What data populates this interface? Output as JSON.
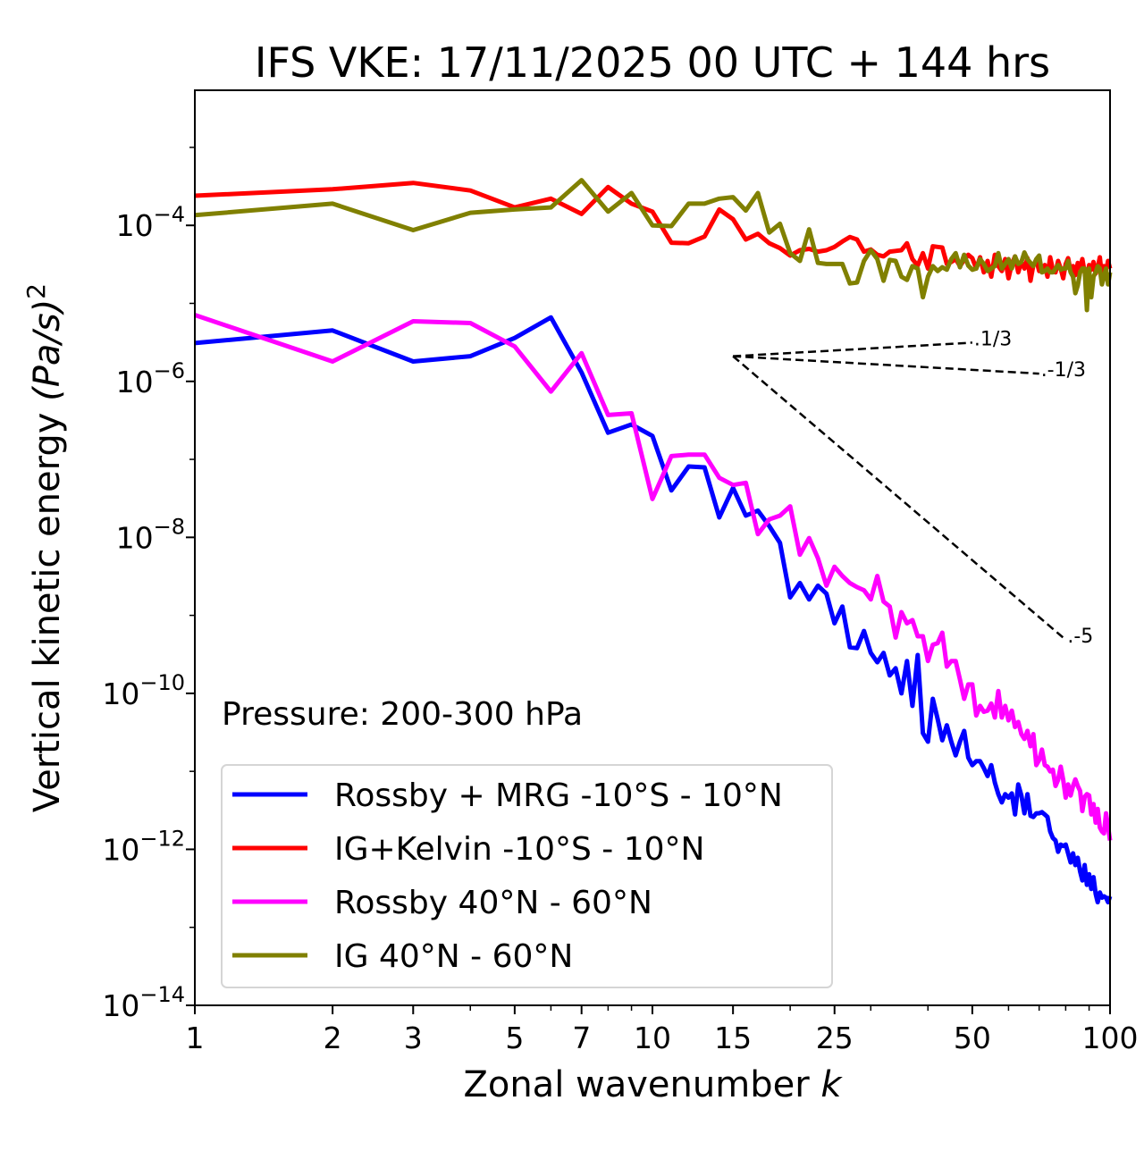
{
  "chart_data": {
    "type": "line",
    "title": "IFS VKE: 17/11/2025 00 UTC + 144 hrs",
    "xlabel": {
      "text": "Zonal wavenumber ",
      "var": "k"
    },
    "ylabel": {
      "text": "Vertical kinetic energy ",
      "unit": "(Pa/s)",
      "exp": "2"
    },
    "xscale": "log",
    "yscale": "log",
    "xlim": [
      1,
      100
    ],
    "ylim": [
      1e-14,
      0.0054
    ],
    "xticks": [
      1,
      2,
      3,
      5,
      7,
      10,
      15,
      25,
      50,
      100
    ],
    "xtick_labels": [
      "1",
      "2",
      "3",
      "5",
      "7",
      "10",
      "15",
      "25",
      "50",
      "100"
    ],
    "xminor_ticks": [
      4,
      6,
      8,
      9,
      20,
      30,
      40,
      60,
      70,
      80,
      90
    ],
    "yticks": [
      -4,
      -6,
      -8,
      -10,
      -12,
      -14
    ],
    "ytick_labels": [
      {
        "base": "10",
        "exp": "−4"
      },
      {
        "base": "10",
        "exp": "−6"
      },
      {
        "base": "10",
        "exp": "−8"
      },
      {
        "base": "10",
        "exp": "−10"
      },
      {
        "base": "10",
        "exp": "−12"
      },
      {
        "base": "10",
        "exp": "−14"
      }
    ],
    "yminor_ticks": [
      -3,
      -5,
      -7,
      -9,
      -11,
      -13
    ],
    "annotation": "Pressure: 200-300 hPa",
    "legend_position": "lower-left",
    "x_start": 1,
    "series": [
      {
        "name": "Rossby + MRG -10°S - 10°N",
        "color": "#0000ff",
        "values": [
          3.1e-06,
          4.5e-06,
          1.8e-06,
          2.1e-06,
          3.6e-06,
          6.6e-06,
          1.3e-06,
          2.2e-07,
          2.8e-07,
          2e-07,
          4e-08,
          8.1e-08,
          7.9e-08,
          1.8e-08,
          4.3e-08,
          1.9e-08,
          2.2e-08,
          1.4e-08,
          8.5e-09,
          1.7e-09,
          2.6e-09,
          1.6e-09,
          2.4e-09,
          1.9e-09,
          7.9e-10,
          1.3e-09,
          3.9e-10,
          3.8e-10,
          6.3e-10,
          3.3e-10,
          2.5e-10,
          3.3e-10,
          1.7e-10,
          2.1e-10,
          1e-10,
          2.6e-10,
          6.9e-11,
          3.1e-10,
          3.1e-11,
          2.4e-11,
          8.5e-11,
          4.7e-11,
          2.5e-11,
          3.9e-11,
          2.4e-11,
          1.6e-11,
          2.4e-11,
          3.3e-11,
          1.5e-11,
          1.2e-11,
          1.35e-11,
          1.35e-11,
          1.1e-11,
          8.7e-12,
          1.2e-11,
          7.2e-12,
          5.1e-12,
          4e-12,
          5.1e-12,
          4.6e-12,
          5.2e-12,
          2.8e-12,
          6.8e-12,
          4.9e-12,
          2.9e-12,
          5.1e-12,
          2.7e-12,
          2.6e-12,
          2.9e-12,
          2.9e-12,
          3e-12,
          2.8e-12,
          2.6e-12,
          1.7e-12,
          1.4e-12,
          1.3e-12,
          9.3e-13,
          1.15e-12,
          1.1e-12,
          1.15e-12,
          8.9e-13,
          6.8e-13,
          8.9e-13,
          6.3e-13,
          7.8e-13,
          5.2e-13,
          4e-13,
          6.3e-13,
          3.5e-13,
          4.8e-13,
          3.1e-13,
          4.4e-13,
          2.7e-13,
          2.1e-13,
          2.8e-13,
          2.4e-13,
          2.5e-13,
          2.4e-13,
          2.1e-13,
          2.5e-13
        ]
      },
      {
        "name": "IG+Kelvin -10°S - 10°N",
        "color": "#ff0000",
        "values": [
          0.00024,
          0.00029,
          0.00035,
          0.00028,
          0.00017,
          0.00022,
          0.00014,
          0.00031,
          0.00019,
          0.00015,
          6e-05,
          5.9e-05,
          7.2e-05,
          0.00016,
          0.00012,
          6.6e-05,
          7.8e-05,
          5.9e-05,
          5.1e-05,
          4.1e-05,
          4.8e-05,
          5e-05,
          4.6e-05,
          4.8e-05,
          5.3e-05,
          6.2e-05,
          7.1e-05,
          6.6e-05,
          4.6e-05,
          4.9e-05,
          4.2e-05,
          4e-05,
          4.6e-05,
          4.7e-05,
          4.8e-05,
          5.9e-05,
          3.7e-05,
          3.05e-05,
          4.4e-05,
          2.8e-05,
          5.4e-05,
          5.3e-05,
          5.2e-05,
          3.2e-05,
          3.4e-05,
          3.7e-05,
          3e-05,
          3.6e-05,
          4.2e-05,
          3.8e-05,
          2.8e-05,
          3.9e-05,
          2.5e-05,
          3.5e-05,
          2.2e-05,
          4.2e-05,
          3e-05,
          2.6e-05,
          3.7e-05,
          2.1e-05,
          3.2e-05,
          4e-05,
          2.5e-05,
          3.4e-05,
          2.8e-05,
          3.8e-05,
          1.95e-05,
          3.1e-05,
          3.6e-05,
          2.6e-05,
          2.8e-05,
          3.1e-05,
          2.2e-05,
          3.9e-05,
          2.7e-05,
          2.5e-05,
          3.5e-05,
          2.8e-05,
          2.1e-05,
          3.2e-05,
          3.8e-05,
          2.6e-05,
          3e-05,
          2.3e-05,
          3.3e-05,
          2.8e-05,
          3.7e-05,
          2.5e-05,
          2.1e-05,
          3.1e-05,
          2.7e-05,
          3.4e-05,
          2.4e-05,
          2.9e-05,
          3.9e-05,
          2.2e-05,
          3e-05,
          2.6e-05,
          3.5e-05,
          2.8e-05
        ]
      },
      {
        "name": "Rossby 40°N - 60°N",
        "color": "#ff00ff",
        "values": [
          7.1e-06,
          1.8e-06,
          5.9e-06,
          5.6e-06,
          2.8e-06,
          7.4e-07,
          2.3e-06,
          3.7e-07,
          3.9e-07,
          3.1e-08,
          1.1e-07,
          1.15e-07,
          1.15e-07,
          5.8e-08,
          4.7e-08,
          5e-08,
          1.1e-08,
          1.7e-08,
          1.9e-08,
          2.5e-08,
          6e-09,
          9.8e-09,
          5.4e-09,
          2.4e-09,
          4.2e-09,
          3.2e-09,
          2.6e-09,
          2.3e-09,
          2.1e-09,
          1.6e-09,
          3.2e-09,
          1.5e-09,
          1.3e-09,
          5.2e-10,
          1.1e-09,
          7.9e-10,
          8.7e-10,
          5.4e-10,
          5.4e-10,
          2.6e-10,
          4.2e-10,
          4.4e-10,
          6e-10,
          2.2e-10,
          2.6e-10,
          2.6e-10,
          1.5e-10,
          8.5e-11,
          1.3e-10,
          1.3e-10,
          5.2e-11,
          6.9e-11,
          5.8e-11,
          6e-11,
          7.4e-11,
          4.9e-11,
          1.07e-10,
          4.9e-11,
          6.9e-11,
          4.5e-11,
          6e-11,
          3.7e-11,
          4.3e-11,
          3e-11,
          2.6e-11,
          3.3e-11,
          2.1e-11,
          3e-11,
          1.2e-11,
          1.4e-11,
          1.9e-11,
          1.2e-11,
          1.15e-11,
          1e-11,
          1.05e-11,
          6.5e-12,
          7.8e-12,
          1.15e-11,
          7.8e-12,
          4.6e-12,
          6.8e-12,
          4.9e-12,
          6.5e-12,
          7.9e-12,
          6.5e-12,
          5.6e-12,
          3.1e-12,
          4.7e-12,
          5.1e-12,
          4.9e-12,
          2.8e-12,
          3.8e-12,
          2.2e-12,
          3.3e-12,
          1.9e-12,
          1.7e-12,
          1.6e-12,
          2.9e-12,
          1.95e-12,
          1.3e-12
        ]
      },
      {
        "name": "IG 40°N - 60°N",
        "color": "#808000",
        "values": [
          0.000135,
          0.00019,
          8.7e-05,
          0.000145,
          0.00016,
          0.00017,
          0.00038,
          0.00015,
          0.00026,
          0.0001,
          9.8e-05,
          0.00019,
          0.00019,
          0.00022,
          0.00023,
          0.000155,
          0.00026,
          8.1e-05,
          0.000105,
          4.4e-05,
          3.5e-05,
          8.9e-05,
          3.3e-05,
          3.2e-05,
          3.2e-05,
          3.2e-05,
          1.8e-05,
          1.85e-05,
          3.5e-05,
          4.8e-05,
          3.7e-05,
          1.95e-05,
          3.6e-05,
          3.5e-05,
          2.2e-05,
          2e-05,
          3e-05,
          2.8e-05,
          1.2e-05,
          2.2e-05,
          3e-05,
          2.6e-05,
          2.9e-05,
          2.7e-05,
          3.7e-05,
          4.4e-05,
          2.9e-05,
          4.2e-05,
          3.05e-05,
          2.7e-05,
          2.8e-05,
          3.7e-05,
          3.2e-05,
          2.6e-05,
          2.8e-05,
          3e-05,
          4.4e-05,
          2.8e-05,
          3.2e-05,
          3.7e-05,
          2.8e-05,
          4e-05,
          3.2e-05,
          3.4e-05,
          4.5e-05,
          3.7e-05,
          3.3e-05,
          3e-05,
          3.7e-05,
          4.1e-05,
          2.5e-05,
          2.6e-05,
          2.8e-05,
          2.5e-05,
          2.5e-05,
          2.8e-05,
          3.1e-05,
          2.7e-05,
          2.8e-05,
          2.8e-05,
          3.5e-05,
          2.5e-05,
          2.2e-05,
          1.35e-05,
          1.7e-05,
          2.5e-05,
          2.8e-05,
          2.8e-05,
          8.2e-06,
          2.8e-05,
          1.2e-05,
          2.2e-05,
          2.5e-05,
          3e-05,
          2.8e-05,
          1.75e-05,
          2.2e-05,
          2.8e-05,
          1.75e-05,
          2.5e-05
        ]
      }
    ],
    "reference_lines": [
      {
        "label": "1/3",
        "slope": 0.3333,
        "k_start": 15,
        "k_end": 50,
        "y_start": 2.1e-06
      },
      {
        "label": "-1/3",
        "slope": -0.3333,
        "k_start": 15,
        "k_end": 70,
        "y_start": 2.1e-06
      },
      {
        "label": "-5",
        "slope": -5,
        "k_start": 15,
        "k_end": 80,
        "y_start": 2.1e-06
      }
    ]
  }
}
